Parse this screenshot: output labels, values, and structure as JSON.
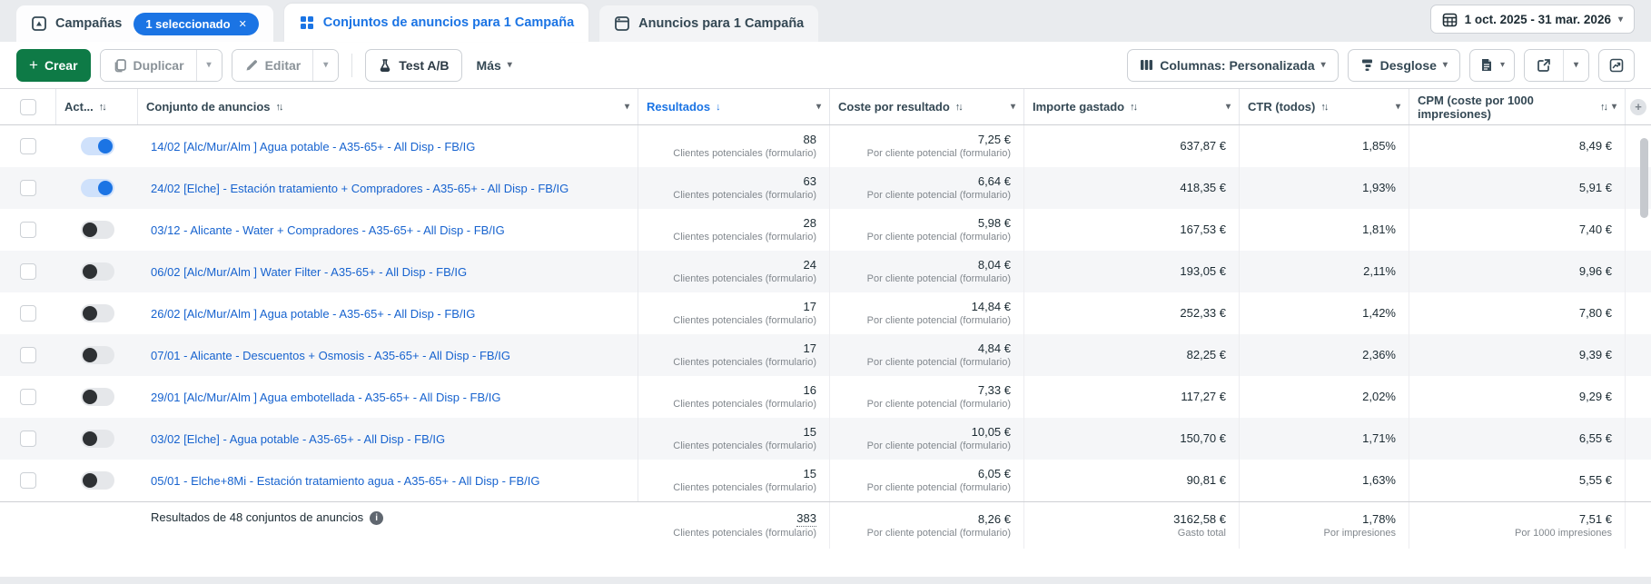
{
  "tabs": {
    "campaigns": {
      "label": "Campañas",
      "badge": "1 seleccionado"
    },
    "adsets": {
      "label": "Conjuntos de anuncios para 1 Campaña"
    },
    "ads": {
      "label": "Anuncios para 1 Campaña"
    }
  },
  "date_range": "1 oct. 2025 - 31 mar. 2026",
  "toolbar": {
    "create": "Crear",
    "duplicate": "Duplicar",
    "edit": "Editar",
    "ab_test": "Test A/B",
    "more": "Más",
    "columns": "Columnas: Personalizada",
    "breakdown": "Desglose"
  },
  "glyphs": {
    "close": "✕",
    "plus": "+",
    "caret": "▾",
    "sort_both": "↑↓",
    "sort_desc": "↓",
    "add_column": "+",
    "info": "i"
  },
  "table": {
    "headers": {
      "active": "Act...",
      "name": "Conjunto de anuncios",
      "results": "Resultados",
      "cost_per_result": "Coste por resultado",
      "amount_spent": "Importe gastado",
      "ctr": "CTR (todos)",
      "cpm": "CPM (coste por 1000 impresiones)"
    },
    "result_sublabel": "Clientes potenciales (formulario)",
    "cost_sublabel": "Por cliente potencial (formulario)",
    "rows": [
      {
        "name": "14/02 [Alc/Mur/Alm ] Agua potable - A35-65+ - All Disp - FB/IG",
        "active": true,
        "results": "88",
        "cost": "7,25 €",
        "spent": "637,87 €",
        "ctr": "1,85%",
        "cpm": "8,49 €"
      },
      {
        "name": "24/02 [Elche] - Estación tratamiento + Compradores - A35-65+ - All Disp - FB/IG",
        "active": true,
        "results": "63",
        "cost": "6,64 €",
        "spent": "418,35 €",
        "ctr": "1,93%",
        "cpm": "5,91 €"
      },
      {
        "name": "03/12 - Alicante - Water + Compradores - A35-65+ - All Disp - FB/IG",
        "active": false,
        "results": "28",
        "cost": "5,98 €",
        "spent": "167,53 €",
        "ctr": "1,81%",
        "cpm": "7,40 €"
      },
      {
        "name": "06/02 [Alc/Mur/Alm ] Water Filter - A35-65+ - All Disp - FB/IG",
        "active": false,
        "results": "24",
        "cost": "8,04 €",
        "spent": "193,05 €",
        "ctr": "2,11%",
        "cpm": "9,96 €"
      },
      {
        "name": "26/02 [Alc/Mur/Alm ] Agua potable - A35-65+ - All Disp - FB/IG",
        "active": false,
        "results": "17",
        "cost": "14,84 €",
        "spent": "252,33 €",
        "ctr": "1,42%",
        "cpm": "7,80 €"
      },
      {
        "name": "07/01 - Alicante - Descuentos + Osmosis - A35-65+ - All Disp - FB/IG",
        "active": false,
        "results": "17",
        "cost": "4,84 €",
        "spent": "82,25 €",
        "ctr": "2,36%",
        "cpm": "9,39 €"
      },
      {
        "name": "29/01 [Alc/Mur/Alm ] Agua embotellada - A35-65+ - All Disp - FB/IG",
        "active": false,
        "results": "16",
        "cost": "7,33 €",
        "spent": "117,27 €",
        "ctr": "2,02%",
        "cpm": "9,29 €"
      },
      {
        "name": "03/02 [Elche] - Agua potable - A35-65+ - All Disp - FB/IG",
        "active": false,
        "results": "15",
        "cost": "10,05 €",
        "spent": "150,70 €",
        "ctr": "1,71%",
        "cpm": "6,55 €"
      },
      {
        "name": "05/01 - Elche+8Mi - Estación tratamiento agua - A35-65+ - All Disp - FB/IG",
        "active": false,
        "results": "15",
        "cost": "6,05 €",
        "spent": "90,81 €",
        "ctr": "1,63%",
        "cpm": "5,55 €"
      }
    ],
    "summary": {
      "label": "Resultados de 48 conjuntos de anuncios",
      "results": "383",
      "results_sub": "Clientes potenciales (formulario)",
      "cost": "8,26 €",
      "cost_sub": "Por cliente potencial (formulario)",
      "spent": "3162,58 €",
      "spent_sub": "Gasto total",
      "ctr": "1,78%",
      "ctr_sub": "Por impresiones",
      "cpm": "7,51 €",
      "cpm_sub": "Por 1000 impresiones"
    }
  },
  "colors": {
    "accent_blue": "#1b74e4",
    "link_blue": "#1763cf",
    "create_green": "#0e7a46",
    "row_alt": "#f5f6f8",
    "strip_bg": "#e9ebee"
  }
}
